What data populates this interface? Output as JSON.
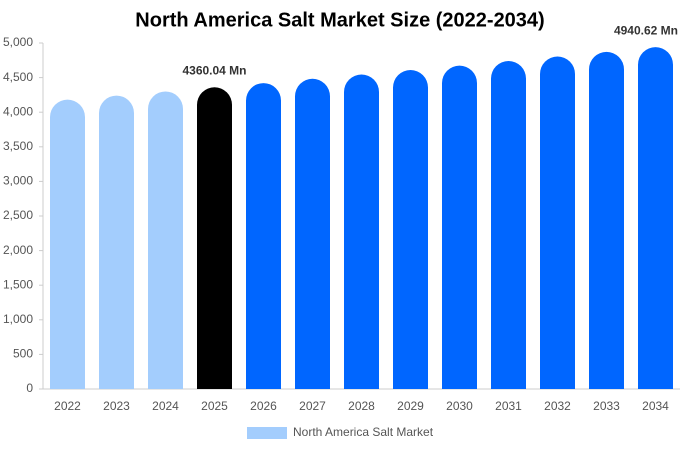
{
  "chart_data": {
    "type": "bar",
    "title": "North America Salt Market Size (2022-2034)",
    "categories": [
      "2022",
      "2023",
      "2024",
      "2025",
      "2026",
      "2027",
      "2028",
      "2029",
      "2030",
      "2031",
      "2032",
      "2033",
      "2034"
    ],
    "series": [
      {
        "name": "North America Salt Market",
        "color": "#a3cdfd",
        "colors": [
          "#a3cdfd",
          "#a3cdfd",
          "#a3cdfd",
          "#000000",
          "#0066ff",
          "#0066ff",
          "#0066ff",
          "#0066ff",
          "#0066ff",
          "#0066ff",
          "#0066ff",
          "#0066ff",
          "#0066ff"
        ],
        "values": [
          4182,
          4240,
          4300,
          4360.04,
          4421,
          4483,
          4545,
          4609,
          4673,
          4739,
          4805,
          4872,
          4940.62
        ],
        "value_labels": [
          null,
          null,
          null,
          "4360.04 Mn",
          null,
          null,
          null,
          null,
          null,
          null,
          null,
          null,
          "4940.62 Mn"
        ]
      }
    ],
    "ylim": [
      0,
      5000
    ],
    "yticks": [
      0,
      500,
      {
        "value": 1000,
        "label": "1,000"
      },
      {
        "value": 1500,
        "label": "1,500"
      },
      {
        "value": 2000,
        "label": "2,000"
      },
      {
        "value": 2500,
        "label": "2,500"
      },
      {
        "value": 3000,
        "label": "3,000"
      },
      {
        "value": 3500,
        "label": "3,500"
      },
      {
        "value": 4000,
        "label": "4,000"
      },
      {
        "value": 4500,
        "label": "4,500"
      },
      {
        "value": 5000,
        "label": "5,000"
      }
    ],
    "grid": false
  }
}
